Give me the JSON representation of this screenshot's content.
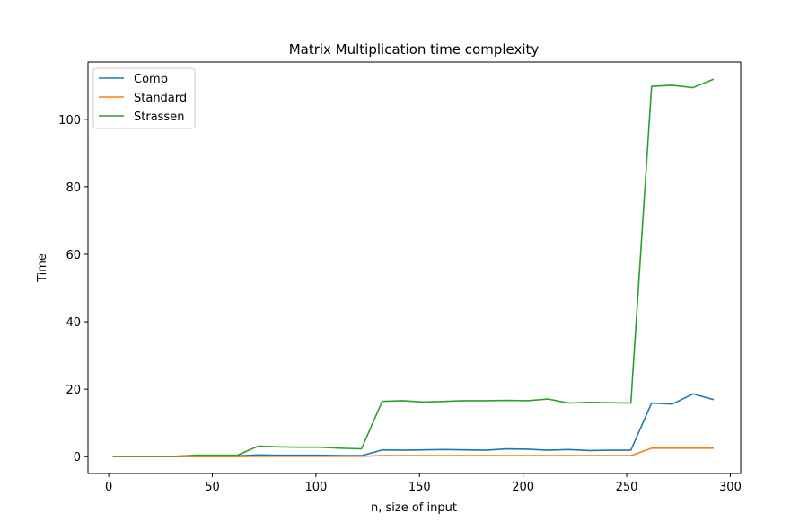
{
  "chart_data": {
    "type": "line",
    "title": "Matrix Multiplication time complexity",
    "xlabel": "n, size of input",
    "ylabel": "Time",
    "xlim": [
      -10,
      305
    ],
    "ylim": [
      -5,
      117
    ],
    "xticks": [
      0,
      50,
      100,
      150,
      200,
      250,
      300
    ],
    "yticks": [
      0,
      20,
      40,
      60,
      80,
      100
    ],
    "grid": false,
    "legend": "top-left",
    "x": [
      2,
      12,
      22,
      32,
      42,
      52,
      62,
      72,
      82,
      92,
      102,
      112,
      122,
      132,
      142,
      152,
      162,
      172,
      182,
      192,
      202,
      212,
      222,
      232,
      242,
      252,
      262,
      272,
      282,
      292
    ],
    "series": [
      {
        "name": "Comp",
        "color": "#1f77b4",
        "values": [
          0.0,
          0.0,
          0.0,
          0.0,
          0.1,
          0.1,
          0.2,
          0.5,
          0.4,
          0.4,
          0.4,
          0.3,
          0.3,
          2.0,
          1.9,
          2.0,
          2.1,
          2.0,
          1.9,
          2.3,
          2.2,
          1.9,
          2.1,
          1.8,
          1.9,
          1.9,
          15.9,
          15.6,
          18.6,
          16.9
        ]
      },
      {
        "name": "Standard",
        "color": "#ff7f0e",
        "values": [
          0.0,
          0.0,
          0.0,
          0.0,
          0.0,
          0.0,
          0.0,
          0.1,
          0.1,
          0.1,
          0.1,
          0.1,
          0.1,
          0.3,
          0.3,
          0.3,
          0.3,
          0.3,
          0.3,
          0.3,
          0.3,
          0.3,
          0.3,
          0.3,
          0.3,
          0.3,
          2.5,
          2.5,
          2.5,
          2.5
        ]
      },
      {
        "name": "Strassen",
        "color": "#2ca02c",
        "values": [
          0.1,
          0.1,
          0.1,
          0.1,
          0.4,
          0.4,
          0.4,
          3.1,
          2.9,
          2.8,
          2.8,
          2.5,
          2.3,
          16.4,
          16.6,
          16.2,
          16.4,
          16.6,
          16.6,
          16.7,
          16.6,
          17.1,
          15.9,
          16.1,
          16.0,
          15.9,
          109.8,
          110.1,
          109.4,
          111.9
        ]
      }
    ]
  }
}
